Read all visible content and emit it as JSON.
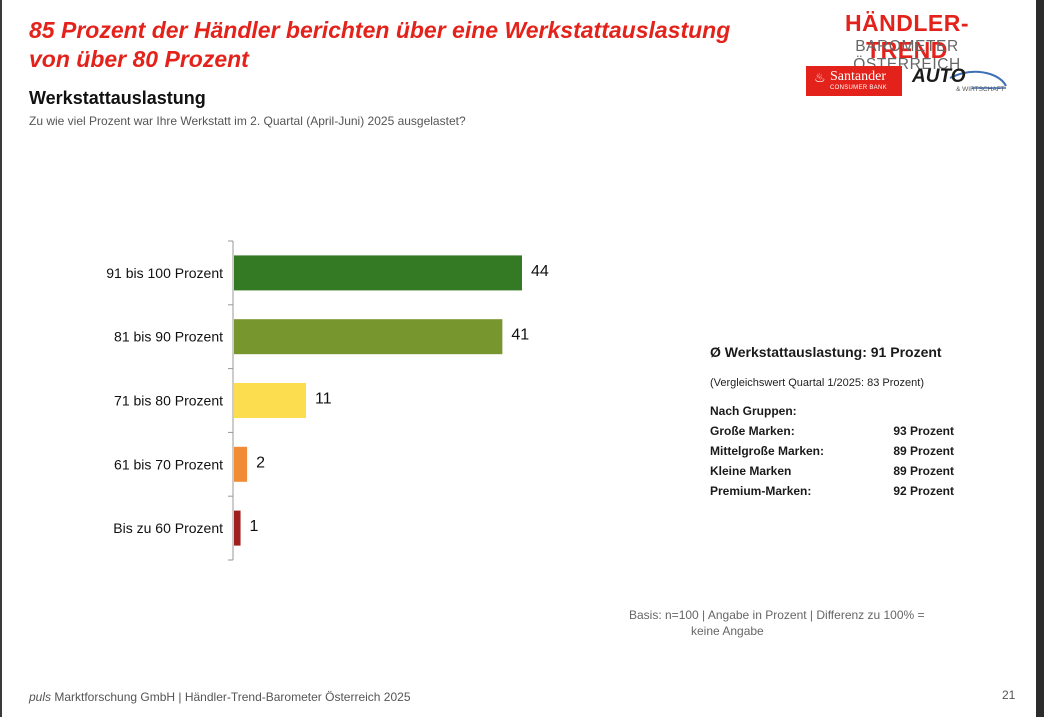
{
  "headline": {
    "line1": "85 Prozent der Händler berichten über eine Werkstattauslastung",
    "line2": "von über 80 Prozent"
  },
  "section_title": "Werkstattauslastung",
  "question": "Zu wie viel Prozent war Ihre Werkstatt im 2. Quartal (April-Juni) 2025 ausgelastet?",
  "logo": {
    "line1": "HÄNDLER-TREND",
    "line2": "BAROMETER ÖSTERREICH",
    "santander_name": "Santander",
    "santander_sub": "CONSUMER BANK",
    "auto_word": "AUTO",
    "auto_sub": "& WIRTSCHAFT"
  },
  "chart_data": {
    "type": "bar",
    "orientation": "horizontal",
    "categories": [
      "91 bis 100 Prozent",
      "81 bis 90 Prozent",
      "71 bis 80 Prozent",
      "61 bis 70 Prozent",
      "Bis zu 60 Prozent"
    ],
    "values": [
      44,
      41,
      11,
      2,
      1
    ],
    "colors": [
      "#347a24",
      "#78962e",
      "#fbdd4f",
      "#f28b35",
      "#a0201f"
    ],
    "xlim": [
      0,
      50
    ],
    "grid": false,
    "legend": "none"
  },
  "info": {
    "title": "Ø Werkstattauslastung: 91 Prozent",
    "compare": "(Vergleichswert Quartal 1/2025: 83 Prozent)",
    "groups_heading": "Nach Gruppen:",
    "groups": [
      {
        "label": "Große Marken:",
        "value": "93 Prozent"
      },
      {
        "label": "Mittelgroße Marken:",
        "value": "89 Prozent"
      },
      {
        "label": "Kleine Marken",
        "value": "89 Prozent"
      },
      {
        "label": "Premium-Marken:",
        "value": "92 Prozent"
      }
    ]
  },
  "basis": {
    "line1": "Basis: n=100 | Angabe in Prozent | Differenz zu 100% =",
    "line2": "keine Angabe"
  },
  "footer": {
    "brand": "puls",
    "text": " Marktforschung GmbH | Händler-Trend-Barometer Österreich 2025"
  },
  "page_number": "21",
  "colors": {
    "accent_red": "#e3231b"
  }
}
